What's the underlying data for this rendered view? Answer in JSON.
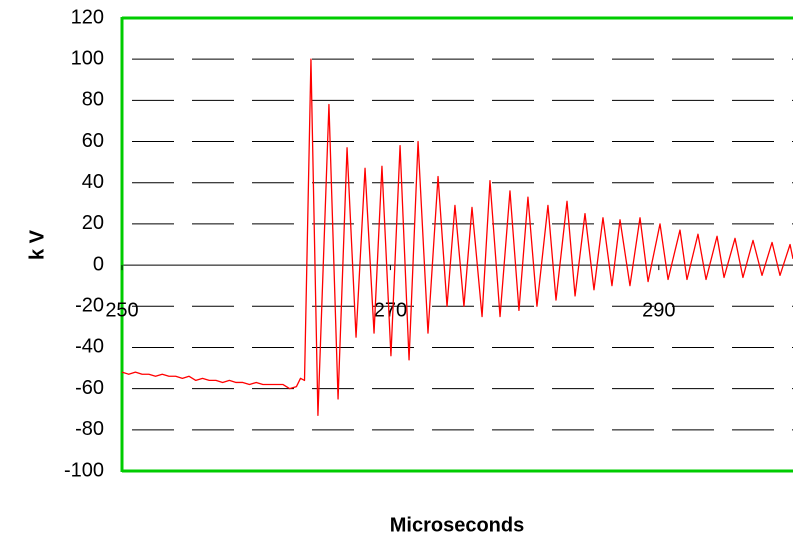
{
  "chart_data": {
    "type": "line",
    "x_label": "Microseconds",
    "y_label": "k V",
    "xlim": [
      250,
      300
    ],
    "ylim": [
      -100,
      120
    ],
    "xticks": [
      250,
      270,
      290
    ],
    "yticks": [
      -100,
      -80,
      -60,
      -40,
      -20,
      0,
      20,
      40,
      60,
      80,
      100,
      120
    ],
    "grid": true,
    "axis_color": "#00cc00",
    "x": [
      250,
      250.5,
      251,
      251.5,
      252,
      252.5,
      253,
      253.5,
      254,
      254.5,
      255,
      255.5,
      256,
      256.5,
      257,
      257.5,
      258,
      258.5,
      259,
      259.5,
      260,
      260.5,
      261,
      261.5,
      262,
      262.5,
      263,
      263.3,
      263.6,
      264.08,
      264.6,
      265.42,
      266.1,
      266.77,
      267.44,
      268.11,
      268.78,
      269.37,
      270.04,
      270.72,
      271.39,
      272.06,
      272.8,
      273.55,
      274.22,
      274.81,
      275.48,
      276.08,
      276.83,
      277.42,
      278.17,
      278.91,
      279.58,
      280.25,
      280.92,
      281.74,
      282.34,
      283.16,
      283.76,
      284.5,
      285.17,
      285.84,
      286.51,
      287.11,
      287.85,
      288.6,
      289.2,
      290.09,
      290.69,
      291.58,
      292.1,
      292.92,
      293.52,
      294.34,
      294.86,
      295.68,
      296.27,
      297.02,
      297.69,
      298.44,
      299.03,
      299.78,
      300
    ],
    "series": [
      {
        "name": "kV",
        "color": "#ff0000",
        "values": [
          -52,
          -53,
          -52,
          -53,
          -53,
          -54,
          -53,
          -54,
          -54,
          -55,
          -54,
          -56,
          -55,
          -56,
          -56,
          -57,
          -56,
          -57,
          -57,
          -58,
          -57,
          -58,
          -58,
          -58,
          -58,
          -60,
          -59,
          -55,
          -56,
          100,
          -73,
          78,
          -65,
          57,
          -35,
          47,
          -33,
          48,
          -44,
          58,
          -46,
          60,
          -33,
          43,
          -20,
          29,
          -20,
          28,
          -25,
          41,
          -25,
          36,
          -22,
          33,
          -20,
          29,
          -17,
          31,
          -15,
          25,
          -12,
          23,
          -10,
          22,
          -10,
          23,
          -8,
          20,
          -7,
          17,
          -7,
          15,
          -7,
          14,
          -6,
          13,
          -6,
          12,
          -5,
          11,
          -5,
          10,
          3
        ]
      }
    ]
  }
}
